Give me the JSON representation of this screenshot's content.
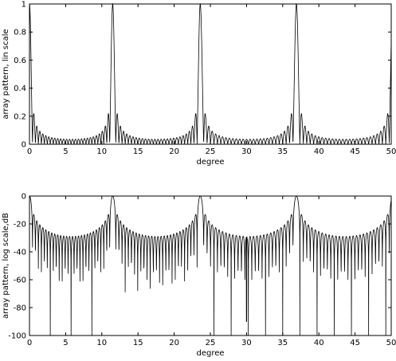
{
  "chart_data": [
    {
      "type": "line",
      "scale": "linear",
      "xlabel": "degree",
      "ylabel": "array pattern, lin scale",
      "xlim": [
        0,
        50
      ],
      "ylim": [
        0,
        1
      ],
      "xticks": [
        0,
        5,
        10,
        15,
        20,
        25,
        30,
        35,
        40,
        45,
        50
      ],
      "yticks": [
        0,
        0.2,
        0.4,
        0.6,
        0.8,
        1
      ],
      "ytick_labels": [
        "0",
        "0.2",
        "0.4",
        "0.6",
        "0.8",
        "1"
      ],
      "grid": false,
      "main_lobes_deg": [
        0,
        11.5,
        23.6,
        36.9
      ],
      "main_lobe_peak": 1,
      "series": [
        {
          "color": "#000000"
        }
      ]
    },
    {
      "type": "line",
      "scale": "dB",
      "xlabel": "degree",
      "ylabel": "array pattern, log scale,dB",
      "xlim": [
        0,
        50
      ],
      "ylim": [
        -100,
        0
      ],
      "xticks": [
        0,
        5,
        10,
        15,
        20,
        25,
        30,
        35,
        40,
        45,
        50
      ],
      "yticks": [
        -100,
        -80,
        -60,
        -40,
        -20,
        0
      ],
      "ytick_labels": [
        "-100",
        "-80",
        "-60",
        "-40",
        "-20",
        "0"
      ],
      "grid": false,
      "main_lobes_deg": [
        0,
        11.5,
        23.6,
        36.9
      ],
      "main_lobe_peak": 0,
      "deepest_null": {
        "x": 30,
        "y": -90
      },
      "series": [
        {
          "color": "#000000"
        }
      ]
    }
  ]
}
